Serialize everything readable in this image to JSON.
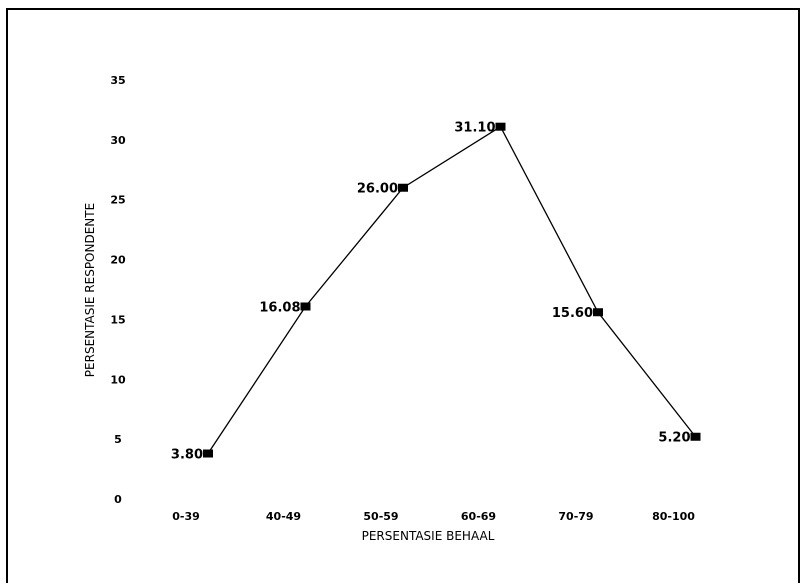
{
  "chart_data": {
    "type": "line",
    "title": "",
    "xlabel": "PERSENTASIE BEHAAL",
    "ylabel": "PERSENTASIE RESPONDENTE",
    "categories": [
      "0-39",
      "40-49",
      "50-59",
      "60-69",
      "70-79",
      "80-100"
    ],
    "series": [
      {
        "values": [
          3.8,
          16.08,
          26.0,
          31.1,
          15.6,
          5.2
        ],
        "labels": [
          "3.80",
          "16.08",
          "26.00",
          "31.10",
          "15.60",
          "5.20"
        ],
        "color": "#000000",
        "marker": "square"
      }
    ],
    "yticks": [
      "0",
      "5",
      "10",
      "15",
      "20",
      "25",
      "30",
      "35"
    ],
    "ylim": [
      0,
      35
    ],
    "grid": false,
    "legend": "none"
  }
}
